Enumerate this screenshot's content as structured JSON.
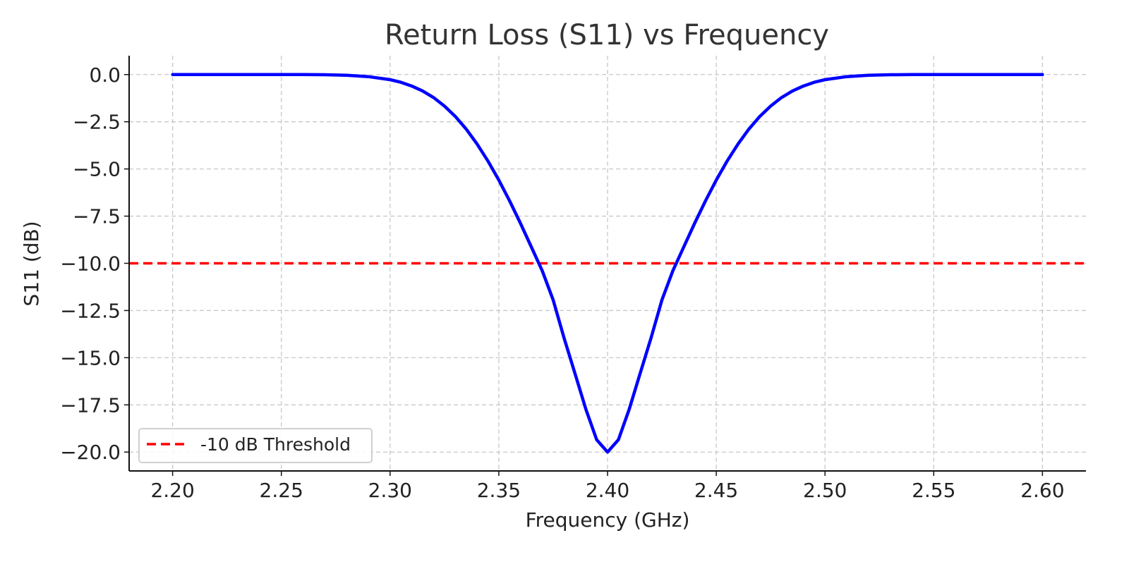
{
  "chart_data": {
    "type": "line",
    "title": "Return Loss (S11) vs Frequency",
    "xlabel": "Frequency (GHz)",
    "ylabel": "S11 (dB)",
    "xlim": [
      2.18,
      2.62
    ],
    "ylim": [
      -21.0,
      1.0
    ],
    "x_ticks": [
      2.2,
      2.25,
      2.3,
      2.35,
      2.4,
      2.45,
      2.5,
      2.55,
      2.6
    ],
    "x_tick_labels": [
      "2.20",
      "2.25",
      "2.30",
      "2.35",
      "2.40",
      "2.45",
      "2.50",
      "2.55",
      "2.60"
    ],
    "y_ticks": [
      0.0,
      -2.5,
      -5.0,
      -7.5,
      -10.0,
      -12.5,
      -15.0,
      -17.5,
      -20.0
    ],
    "y_tick_labels": [
      "0.0",
      "−2.5",
      "−5.0",
      "−7.5",
      "−10.0",
      "−12.5",
      "−15.0",
      "−17.5",
      "−20.0"
    ],
    "grid": true,
    "legend_position": "lower-left",
    "series": [
      {
        "color": "#0000ff",
        "x": [
          2.2,
          2.21,
          2.22,
          2.23,
          2.24,
          2.25,
          2.26,
          2.27,
          2.28,
          2.29,
          2.3,
          2.305,
          2.31,
          2.315,
          2.32,
          2.325,
          2.33,
          2.335,
          2.34,
          2.345,
          2.35,
          2.355,
          2.36,
          2.365,
          2.37,
          2.375,
          2.38,
          2.385,
          2.39,
          2.395,
          2.4,
          2.405,
          2.41,
          2.415,
          2.42,
          2.425,
          2.43,
          2.435,
          2.44,
          2.445,
          2.45,
          2.455,
          2.46,
          2.465,
          2.47,
          2.475,
          2.48,
          2.485,
          2.49,
          2.495,
          2.5,
          2.51,
          2.52,
          2.53,
          2.54,
          2.55,
          2.56,
          2.57,
          2.58,
          2.59,
          2.6
        ],
        "y": [
          0.0,
          0.0,
          0.0,
          0.0,
          0.0,
          0.0,
          0.0,
          -0.01,
          -0.04,
          -0.11,
          -0.27,
          -0.41,
          -0.61,
          -0.87,
          -1.22,
          -1.67,
          -2.22,
          -2.89,
          -3.68,
          -4.58,
          -5.59,
          -6.7,
          -7.89,
          -9.14,
          -10.4,
          -11.95,
          -13.96,
          -15.83,
          -17.72,
          -19.35,
          -20.0,
          -19.35,
          -17.72,
          -15.83,
          -13.96,
          -11.95,
          -10.4,
          -9.14,
          -7.89,
          -6.7,
          -5.59,
          -4.58,
          -3.68,
          -2.89,
          -2.22,
          -1.67,
          -1.22,
          -0.87,
          -0.61,
          -0.41,
          -0.27,
          -0.11,
          -0.04,
          -0.01,
          0.0,
          0.0,
          0.0,
          0.0,
          0.0,
          0.0,
          0.0
        ]
      }
    ],
    "threshold": {
      "name": "-10 dB Threshold",
      "value": -10.0,
      "color": "#ff0000",
      "style": "dashed"
    },
    "colors": {
      "text": "#222222",
      "title": "#333333",
      "grid": "#c8c8c8",
      "axis": "#111111"
    }
  }
}
